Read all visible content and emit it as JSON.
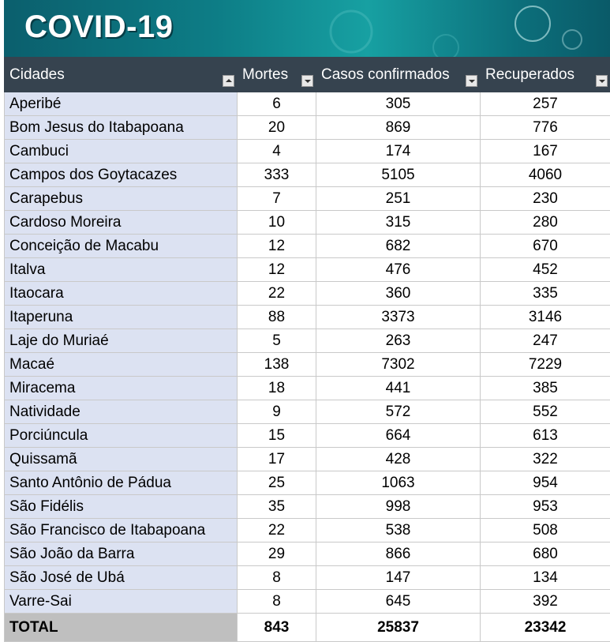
{
  "header": {
    "title": "COVID-19"
  },
  "table": {
    "columns": [
      "Cidades",
      "Mortes",
      "Casos confirmados",
      "Recuperados"
    ],
    "rows": [
      [
        "Aperibé",
        6,
        305,
        257
      ],
      [
        "Bom Jesus do Itabapoana",
        20,
        869,
        776
      ],
      [
        "Cambuci",
        4,
        174,
        167
      ],
      [
        "Campos dos Goytacazes",
        333,
        5105,
        4060
      ],
      [
        "Carapebus",
        7,
        251,
        230
      ],
      [
        "Cardoso Moreira",
        10,
        315,
        280
      ],
      [
        "Conceição de Macabu",
        12,
        682,
        670
      ],
      [
        "Italva",
        12,
        476,
        452
      ],
      [
        "Itaocara",
        22,
        360,
        335
      ],
      [
        "Itaperuna",
        88,
        3373,
        3146
      ],
      [
        "Laje do Muriaé",
        5,
        263,
        247
      ],
      [
        "Macaé",
        138,
        7302,
        7229
      ],
      [
        "Miracema",
        18,
        441,
        385
      ],
      [
        "Natividade",
        9,
        572,
        552
      ],
      [
        "Porciúncula",
        15,
        664,
        613
      ],
      [
        "Quissamã",
        17,
        428,
        322
      ],
      [
        "Santo Antônio de Pádua",
        25,
        1063,
        954
      ],
      [
        "São Fidélis",
        35,
        998,
        953
      ],
      [
        "São Francisco de Itabapoana",
        22,
        538,
        508
      ],
      [
        "São João da Barra",
        29,
        866,
        680
      ],
      [
        "São José de Ubá",
        8,
        147,
        134
      ],
      [
        "Varre-Sai",
        8,
        645,
        392
      ]
    ],
    "total": [
      "TOTAL",
      843,
      25837,
      23342
    ]
  }
}
